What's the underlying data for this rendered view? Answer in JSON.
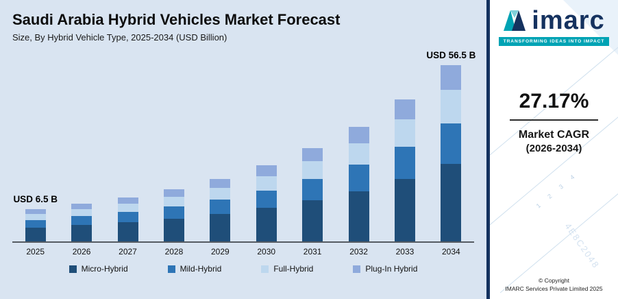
{
  "header": {
    "title": "Saudi Arabia Hybrid Vehicles Market Forecast",
    "subtitle": "Size, By Hybrid Vehicle Type, 2025-2034 (USD Billion)"
  },
  "chart_data": {
    "type": "bar",
    "stacked": true,
    "title": "Saudi Arabia Hybrid Vehicles Market Forecast",
    "subtitle": "Size, By Hybrid Vehicle Type, 2025-2034 (USD Billion)",
    "unit": "USD Billion",
    "categories": [
      "2025",
      "2026",
      "2027",
      "2028",
      "2029",
      "2030",
      "2031",
      "2032",
      "2033",
      "2034"
    ],
    "series": [
      {
        "name": "Micro-Hybrid",
        "color": "#1f4e79",
        "values": [
          2.86,
          3.64,
          4.63,
          5.88,
          7.48,
          9.52,
          12.1,
          15.39,
          19.57,
          24.86
        ]
      },
      {
        "name": "Mild-Hybrid",
        "color": "#2e75b6",
        "values": [
          1.5,
          1.9,
          2.42,
          3.08,
          3.91,
          4.97,
          6.32,
          8.04,
          10.23,
          13.0
        ]
      },
      {
        "name": "Full-Hybrid",
        "color": "#bdd7ee",
        "values": [
          1.24,
          1.57,
          2.0,
          2.54,
          3.23,
          4.11,
          5.22,
          6.65,
          8.45,
          10.74
        ]
      },
      {
        "name": "Plug-In Hybrid",
        "color": "#8faadc",
        "values": [
          0.9,
          1.16,
          1.46,
          1.87,
          2.39,
          3.03,
          3.86,
          4.9,
          6.23,
          7.9
        ]
      }
    ],
    "totals": [
      6.5,
      8.27,
      10.51,
      13.37,
      17.01,
      21.63,
      27.5,
      34.98,
      44.48,
      56.5
    ],
    "annotations": [
      {
        "category": "2025",
        "text": "USD 6.5 B"
      },
      {
        "category": "2034",
        "text": "USD 56.5 B"
      }
    ],
    "ylim": [
      0,
      60
    ],
    "grid": false,
    "legend_position": "bottom"
  },
  "sidebar": {
    "logo_text": "imarc",
    "tagline": "TRANSFORMING IDEAS INTO IMPACT",
    "cagr_value": "27.17%",
    "cagr_label": "Market CAGR",
    "cagr_period": "(2026-2034)",
    "copyright_line1": "© Copyright",
    "copyright_line2": "IMARC Services Private Limited 2025",
    "decor_numbers": "1  2  3  4",
    "decor_digits": "4E8C2048",
    "colors": {
      "logo_navy": "#15325f",
      "logo_teal": "#00a3b4",
      "panel_background": "#d9e4f1"
    }
  }
}
